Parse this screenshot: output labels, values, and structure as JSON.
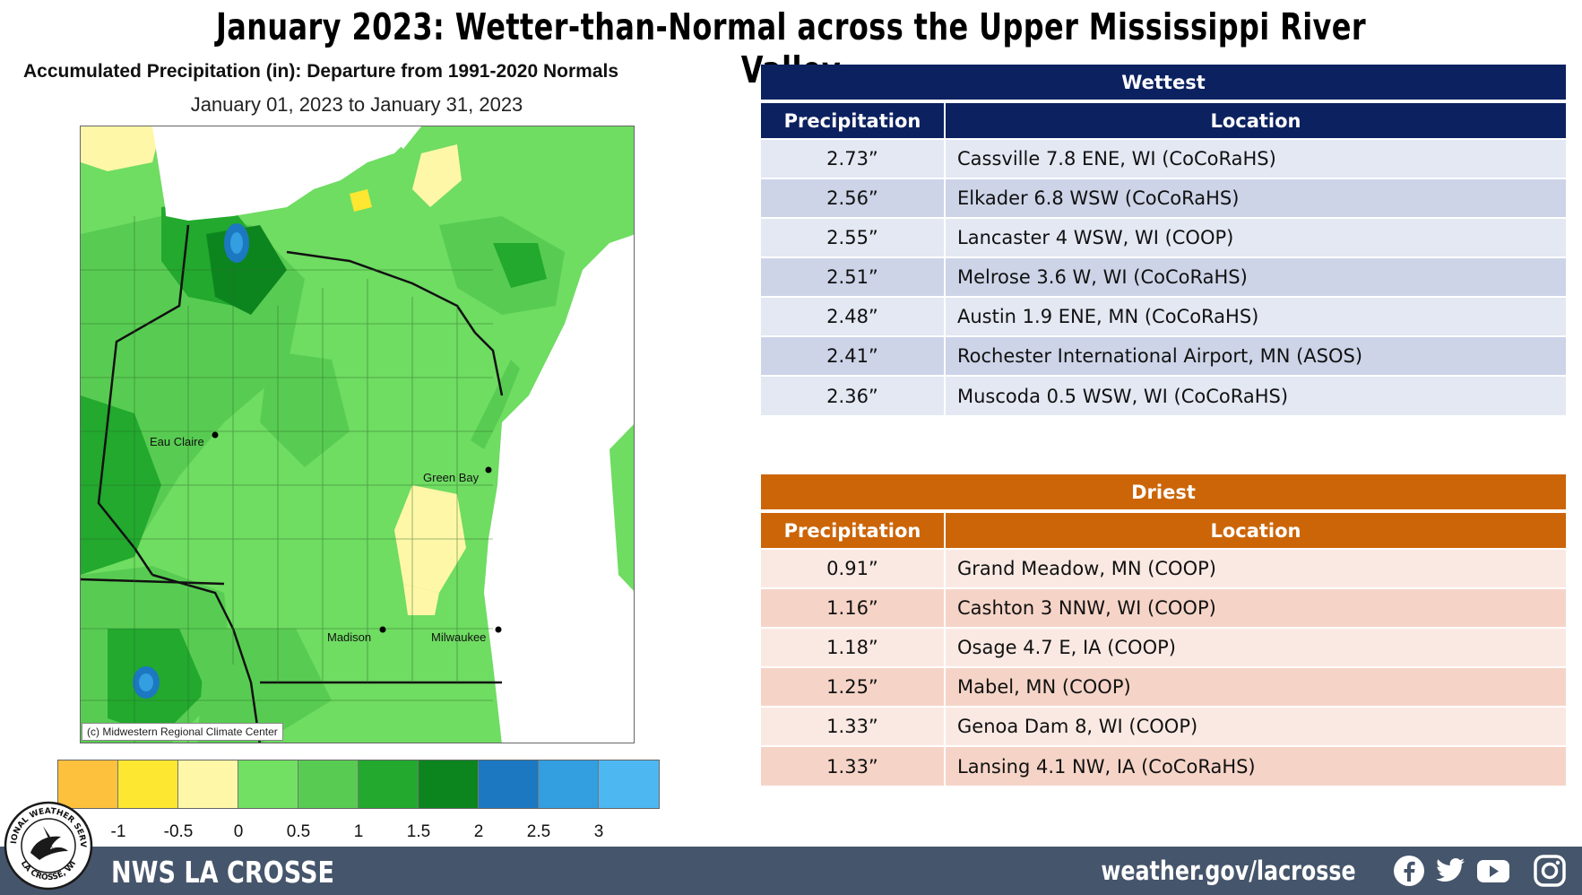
{
  "title": "January 2023:  Wetter-than-Normal across the Upper Mississippi River Valley",
  "map": {
    "heading": "Accumulated Precipitation (in): Departure from 1991-2020 Normals",
    "date_range": "January 01, 2023 to January 31, 2023",
    "credit": "(c) Midwestern Regional Climate Center",
    "cities": [
      {
        "name": "Eau Claire"
      },
      {
        "name": "Green Bay"
      },
      {
        "name": "Madison"
      },
      {
        "name": "Milwaukee"
      }
    ]
  },
  "legend": {
    "colors": [
      "#fdc13e",
      "#fde730",
      "#fef7a7",
      "#72e062",
      "#58cc52",
      "#22a92e",
      "#0d851f",
      "#1c78c0",
      "#339ee0",
      "#4db7f2"
    ],
    "labels": [
      "-1",
      "-0.5",
      "0",
      "0.5",
      "1",
      "1.5",
      "2",
      "2.5",
      "3"
    ]
  },
  "wettest": {
    "title": "Wettest",
    "col_precip": "Precipitation",
    "col_location": "Location",
    "rows": [
      {
        "precip": "2.73”",
        "location": "Cassville 7.8 ENE, WI (CoCoRaHS)"
      },
      {
        "precip": "2.56”",
        "location": "Elkader 6.8 WSW (CoCoRaHS)"
      },
      {
        "precip": "2.55”",
        "location": "Lancaster 4 WSW, WI (COOP)"
      },
      {
        "precip": "2.51”",
        "location": "Melrose 3.6 W, WI (CoCoRaHS)"
      },
      {
        "precip": "2.48”",
        "location": "Austin 1.9 ENE, MN (CoCoRaHS)"
      },
      {
        "precip": "2.41”",
        "location": "Rochester International Airport, MN (ASOS)"
      },
      {
        "precip": "2.36”",
        "location": "Muscoda 0.5 WSW, WI (CoCoRaHS)"
      }
    ]
  },
  "driest": {
    "title": "Driest",
    "col_precip": "Precipitation",
    "col_location": "Location",
    "rows": [
      {
        "precip": "0.91”",
        "location": "Grand Meadow, MN (COOP)"
      },
      {
        "precip": "1.16”",
        "location": "Cashton 3 NNW, WI (COOP)"
      },
      {
        "precip": "1.18”",
        "location": "Osage 4.7 E, IA (COOP)"
      },
      {
        "precip": "1.25”",
        "location": "Mabel, MN (COOP)"
      },
      {
        "precip": "1.33”",
        "location": "Genoa Dam 8, WI (COOP)"
      },
      {
        "precip": "1.33”",
        "location": "Lansing 4.1 NW, IA (CoCoRaHS)"
      }
    ]
  },
  "footer": {
    "org": "NWS LA CROSSE",
    "url": "weather.gov/lacrosse",
    "social_icons": [
      "facebook-icon",
      "twitter-icon",
      "youtube-icon",
      "instagram-icon"
    ]
  },
  "logo": {
    "text_top": "NATIONAL WEATHER SERVICE",
    "text_bottom": "LA CROSSE, WI"
  }
}
